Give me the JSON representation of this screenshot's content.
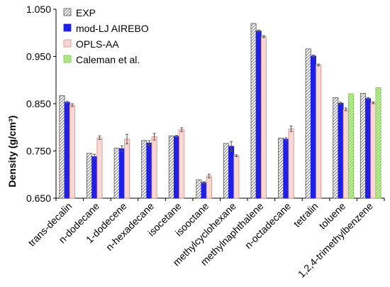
{
  "chart_data": {
    "type": "bar",
    "title": "",
    "xlabel": "",
    "ylabel": "Density (g/cm³)",
    "ylim": [
      0.65,
      1.05
    ],
    "yticks": [
      "0.650",
      "0.750",
      "0.850",
      "0.950",
      "1.050"
    ],
    "ytick_values": [
      0.65,
      0.75,
      0.85,
      0.95,
      1.05
    ],
    "grid": false,
    "legend_position": "top-left",
    "categories": [
      "trans-decalin",
      "n-dodecane",
      "1-dodecene",
      "n-hexadecane",
      "isocetane",
      "isooctane",
      "methylcyclohexane",
      "methylnaphthalene",
      "n-octadecane",
      "tetralin",
      "toluene",
      "1,2,4-trimethylbenzene"
    ],
    "series": [
      {
        "name": "EXP",
        "pattern": "diagonal-hatch",
        "color": "#7f7f7f",
        "values": [
          0.867,
          0.745,
          0.756,
          0.772,
          0.782,
          0.689,
          0.766,
          1.02,
          0.777,
          0.966,
          0.863,
          0.872
        ],
        "errors": [
          0,
          0,
          0,
          0,
          0,
          0,
          0,
          0,
          0,
          0,
          0,
          0
        ]
      },
      {
        "name": "mod-LJ AIREBO",
        "pattern": "solid",
        "color": "#1f1fe6",
        "values": [
          0.853,
          0.738,
          0.755,
          0.767,
          0.781,
          0.683,
          0.76,
          1.004,
          0.775,
          0.951,
          0.851,
          0.861
        ],
        "errors": [
          0.002,
          0.005,
          0.006,
          0.005,
          0.002,
          0.002,
          0.01,
          0.002,
          0.003,
          0.002,
          0.002,
          0.002
        ]
      },
      {
        "name": "OPLS-AA",
        "pattern": "solid",
        "color": "#f8d8d4",
        "edge": "#d98a80",
        "values": [
          0.847,
          0.778,
          0.775,
          0.78,
          0.795,
          0.697,
          0.74,
          0.992,
          0.797,
          0.932,
          0.838,
          0.852
        ],
        "errors": [
          0.003,
          0.004,
          0.01,
          0.007,
          0.004,
          0.004,
          0.002,
          0.002,
          0.006,
          0.002,
          0.003,
          0.002
        ]
      },
      {
        "name": "Caleman et al.",
        "pattern": "green-hatch",
        "color": "#66cc33",
        "values": [
          null,
          null,
          null,
          null,
          null,
          null,
          null,
          null,
          null,
          null,
          0.871,
          0.884
        ],
        "errors": [
          0,
          0,
          0,
          0,
          0,
          0,
          0,
          0,
          0,
          0,
          0,
          0
        ]
      }
    ]
  }
}
